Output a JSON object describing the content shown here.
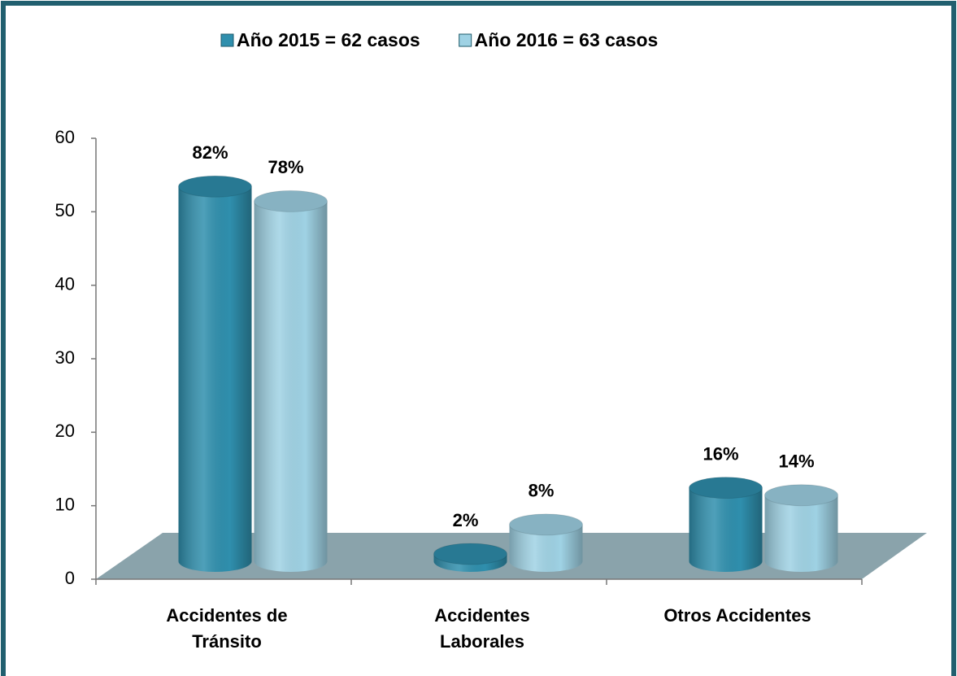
{
  "chart_data": {
    "type": "bar3d",
    "categories": [
      [
        "Accidentes de",
        "Tránsito"
      ],
      [
        "Accidentes",
        "Laborales"
      ],
      [
        "Otros Accidentes"
      ]
    ],
    "series": [
      {
        "name": "Año 2015 = 62 casos",
        "color": "#2f8fad",
        "values": [
          51,
          1,
          10
        ],
        "labels": [
          "82%",
          "2%",
          "16%"
        ]
      },
      {
        "name": "Año 2016 = 63 casos",
        "color": "#9fd2e4",
        "values": [
          49,
          5,
          9
        ],
        "labels": [
          "78%",
          "8%",
          "14%"
        ]
      }
    ],
    "ylim": [
      0,
      60
    ],
    "yticks": [
      0,
      10,
      20,
      30,
      40,
      50,
      60
    ],
    "legend": "top"
  }
}
